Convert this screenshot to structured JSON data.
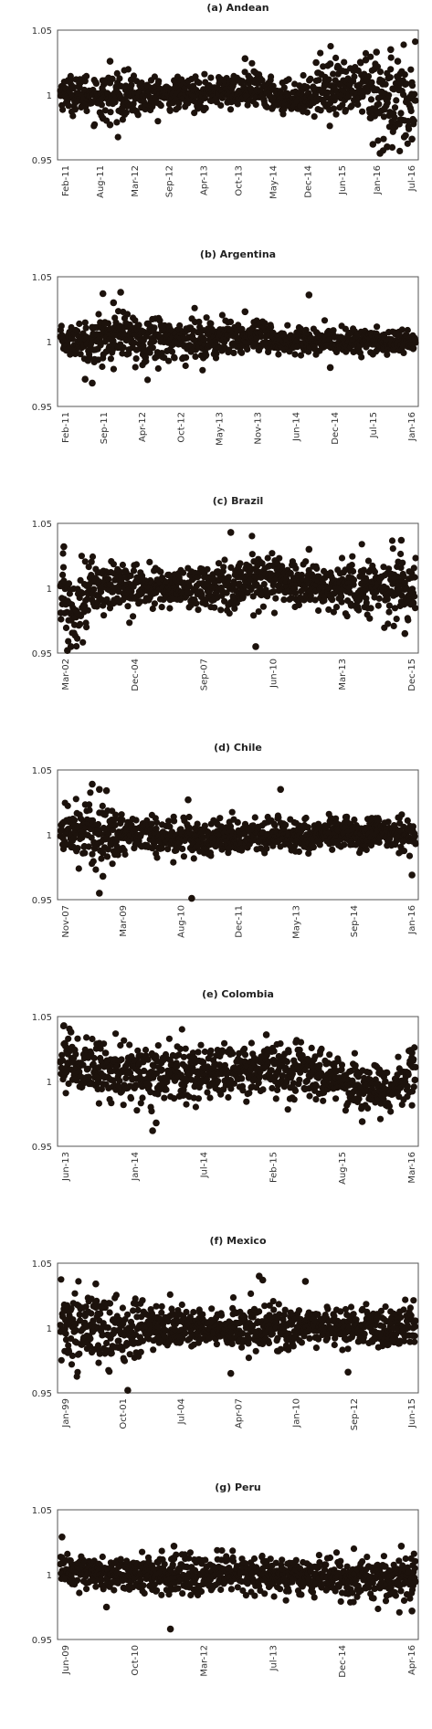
{
  "chart_data": [
    {
      "type": "scatter",
      "title": "(a) Andean",
      "ylim": [
        0.95,
        1.05
      ],
      "yticks": [
        "0.95",
        "1",
        "1.05"
      ],
      "xticks": [
        "Feb-11",
        "Aug-11",
        "Mar-12",
        "Sep-12",
        "Apr-13",
        "Oct-13",
        "May-14",
        "Dec-14",
        "Jun-15",
        "Jan-16",
        "Jul-16"
      ],
      "color": "#1c120c",
      "grid": "horizontal at 1",
      "series": [
        {
          "x_start": "Feb-11",
          "x_end": "Jul-16",
          "center": 1.0,
          "profile": [
            [
              0.0,
              1.002,
              0.006
            ],
            [
              0.08,
              1.0,
              0.008
            ],
            [
              0.15,
              0.998,
              0.009
            ],
            [
              0.3,
              1.0,
              0.006
            ],
            [
              0.45,
              1.003,
              0.006
            ],
            [
              0.55,
              1.004,
              0.007
            ],
            [
              0.62,
              0.998,
              0.006
            ],
            [
              0.7,
              0.999,
              0.006
            ],
            [
              0.75,
              1.008,
              0.011
            ],
            [
              0.85,
              1.003,
              0.01
            ],
            [
              0.9,
              0.995,
              0.02
            ],
            [
              1.0,
              0.998,
              0.016
            ]
          ],
          "outliers": [
            [
              0.14,
              1.026
            ],
            [
              0.12,
              0.982
            ],
            [
              0.14,
              0.977
            ],
            [
              0.52,
              1.028
            ],
            [
              0.72,
              1.025
            ],
            [
              0.76,
              1.024
            ],
            [
              0.86,
              1.027
            ],
            [
              0.89,
              1.033
            ],
            [
              0.93,
              1.035
            ],
            [
              0.95,
              1.026
            ],
            [
              0.88,
              0.962
            ],
            [
              0.9,
              0.955
            ],
            [
              0.92,
              0.96
            ],
            [
              0.99,
              0.966
            ]
          ]
        }
      ]
    },
    {
      "type": "scatter",
      "title": "(b) Argentina",
      "ylim": [
        0.95,
        1.05
      ],
      "yticks": [
        "0.95",
        "1",
        "1.05"
      ],
      "xticks": [
        "Feb-11",
        "Sep-11",
        "Apr-12",
        "Oct-12",
        "May-13",
        "Nov-13",
        "Jun-14",
        "Dec-14",
        "Jul-15",
        "Jan-16"
      ],
      "color": "#1c120c",
      "grid": "horizontal at 1",
      "series": [
        {
          "x_start": "Feb-11",
          "x_end": "Jul-16",
          "center": 1.0,
          "profile": [
            [
              0.0,
              1.0,
              0.005
            ],
            [
              0.15,
              1.003,
              0.01
            ],
            [
              0.35,
              1.002,
              0.008
            ],
            [
              0.55,
              1.002,
              0.007
            ],
            [
              0.65,
              1.0,
              0.005
            ],
            [
              0.8,
              1.0,
              0.005
            ],
            [
              1.0,
              1.0,
              0.004
            ]
          ],
          "outliers": [
            [
              0.12,
              1.037
            ],
            [
              0.17,
              1.038
            ],
            [
              0.15,
              1.03
            ],
            [
              0.7,
              1.036
            ],
            [
              0.07,
              0.971
            ],
            [
              0.09,
              0.968
            ],
            [
              0.52,
              1.023
            ],
            [
              0.76,
              0.98
            ]
          ]
        }
      ]
    },
    {
      "type": "scatter",
      "title": "(c) Brazil",
      "ylim": [
        0.95,
        1.05
      ],
      "yticks": [
        "0.95",
        "1",
        "1.05"
      ],
      "xticks": [
        "Mar-02",
        "Dec-04",
        "Sep-07",
        "Jun-10",
        "Mar-13",
        "Dec-15"
      ],
      "color": "#1c120c",
      "grid": "horizontal at 1",
      "series": [
        {
          "x_start": "Mar-02",
          "x_end": "Jul-16",
          "center": 1.0,
          "profile": [
            [
              0.0,
              0.998,
              0.016
            ],
            [
              0.03,
              0.985,
              0.018
            ],
            [
              0.1,
              1.002,
              0.01
            ],
            [
              0.3,
              1.0,
              0.007
            ],
            [
              0.45,
              1.002,
              0.01
            ],
            [
              0.6,
              1.008,
              0.01
            ],
            [
              0.75,
              1.0,
              0.008
            ],
            [
              0.92,
              1.002,
              0.012
            ],
            [
              1.0,
              1.0,
              0.012
            ]
          ],
          "outliers": [
            [
              0.48,
              1.043
            ],
            [
              0.01,
              1.032
            ],
            [
              0.02,
              0.952
            ],
            [
              0.03,
              0.955
            ],
            [
              0.55,
              0.955
            ],
            [
              0.96,
              1.037
            ],
            [
              0.97,
              0.965
            ],
            [
              0.7,
              1.03
            ]
          ]
        }
      ]
    },
    {
      "type": "scatter",
      "title": "(d) Chile",
      "ylim": [
        0.95,
        1.05
      ],
      "yticks": [
        "0.95",
        "1",
        "1.05"
      ],
      "xticks": [
        "Nov-07",
        "Mar-09",
        "Aug-10",
        "Dec-11",
        "May-13",
        "Sep-14",
        "Jan-16"
      ],
      "color": "#1c120c",
      "grid": "horizontal at 1",
      "series": [
        {
          "x_start": "Nov-07",
          "x_end": "Jul-16",
          "center": 1.0,
          "profile": [
            [
              0.0,
              1.003,
              0.008
            ],
            [
              0.1,
              1.002,
              0.014
            ],
            [
              0.2,
              1.0,
              0.007
            ],
            [
              0.4,
              0.998,
              0.007
            ],
            [
              0.6,
              1.0,
              0.007
            ],
            [
              0.8,
              1.0,
              0.006
            ],
            [
              1.0,
              1.0,
              0.007
            ]
          ],
          "outliers": [
            [
              0.09,
              1.039
            ],
            [
              0.11,
              1.035
            ],
            [
              0.13,
              1.034
            ],
            [
              0.11,
              0.955
            ],
            [
              0.36,
              1.027
            ],
            [
              0.37,
              0.951
            ],
            [
              0.62,
              1.035
            ],
            [
              0.99,
              0.969
            ],
            [
              0.12,
              0.968
            ]
          ]
        }
      ]
    },
    {
      "type": "scatter",
      "title": "(e) Colombia",
      "ylim": [
        0.95,
        1.05
      ],
      "yticks": [
        "0.95",
        "1",
        "1.05"
      ],
      "xticks": [
        "Jun-13",
        "Jan-14",
        "Jul-14",
        "Feb-15",
        "Aug-15",
        "Mar-16"
      ],
      "color": "#1c120c",
      "grid": "horizontal at 1",
      "series": [
        {
          "x_start": "Jun-13",
          "x_end": "Jul-16",
          "center": 1.0,
          "profile": [
            [
              0.0,
              1.02,
              0.012
            ],
            [
              0.08,
              1.008,
              0.012
            ],
            [
              0.25,
              1.005,
              0.01
            ],
            [
              0.45,
              1.008,
              0.01
            ],
            [
              0.6,
              1.012,
              0.01
            ],
            [
              0.8,
              1.0,
              0.01
            ],
            [
              0.93,
              0.992,
              0.008
            ],
            [
              1.0,
              1.012,
              0.01
            ]
          ],
          "outliers": [
            [
              0.01,
              1.043
            ],
            [
              0.03,
              1.038
            ],
            [
              0.26,
              0.962
            ],
            [
              0.27,
              0.968
            ],
            [
              0.58,
              1.036
            ],
            [
              0.85,
              0.969
            ],
            [
              0.99,
              1.022
            ]
          ]
        }
      ]
    },
    {
      "type": "scatter",
      "title": "(f) Mexico",
      "ylim": [
        0.95,
        1.05
      ],
      "yticks": [
        "0.95",
        "1",
        "1.05"
      ],
      "xticks": [
        "Jan-99",
        "Oct-01",
        "Jul-04",
        "Apr-07",
        "Jan-10",
        "Sep-12",
        "Jun-15"
      ],
      "color": "#1c120c",
      "grid": "horizontal at 1",
      "series": [
        {
          "x_start": "Jan-99",
          "x_end": "Jul-16",
          "center": 1.0,
          "profile": [
            [
              0.0,
              1.0,
              0.016
            ],
            [
              0.15,
              1.0,
              0.015
            ],
            [
              0.25,
              1.0,
              0.009
            ],
            [
              0.45,
              1.0,
              0.006
            ],
            [
              0.55,
              1.0,
              0.011
            ],
            [
              0.7,
              1.0,
              0.006
            ],
            [
              1.0,
              1.0,
              0.009
            ]
          ],
          "outliers": [
            [
              0.19,
              0.952
            ],
            [
              0.56,
              1.04
            ],
            [
              0.57,
              1.037
            ],
            [
              0.69,
              1.036
            ],
            [
              0.81,
              0.966
            ],
            [
              0.48,
              0.965
            ],
            [
              0.1,
              1.034
            ]
          ]
        }
      ]
    },
    {
      "type": "scatter",
      "title": "(g) Peru",
      "ylim": [
        0.95,
        1.05
      ],
      "yticks": [
        "0.95",
        "1",
        "1.05"
      ],
      "xticks": [
        "Jun-09",
        "Oct-10",
        "Mar-12",
        "Jul-13",
        "Dec-14",
        "Apr-16"
      ],
      "color": "#1c120c",
      "grid": "horizontal at 1",
      "series": [
        {
          "x_start": "Jun-09",
          "x_end": "Jul-16",
          "center": 1.0,
          "profile": [
            [
              0.0,
              1.006,
              0.006
            ],
            [
              0.15,
              1.0,
              0.007
            ],
            [
              0.3,
              1.0,
              0.008
            ],
            [
              0.5,
              1.0,
              0.007
            ],
            [
              0.7,
              0.999,
              0.006
            ],
            [
              0.9,
              0.997,
              0.008
            ],
            [
              1.0,
              0.998,
              0.01
            ]
          ],
          "outliers": [
            [
              0.005,
              1.029
            ],
            [
              0.32,
              1.022
            ],
            [
              0.31,
              0.958
            ],
            [
              0.96,
              1.022
            ],
            [
              0.99,
              0.972
            ],
            [
              0.13,
              0.975
            ]
          ]
        }
      ]
    }
  ]
}
